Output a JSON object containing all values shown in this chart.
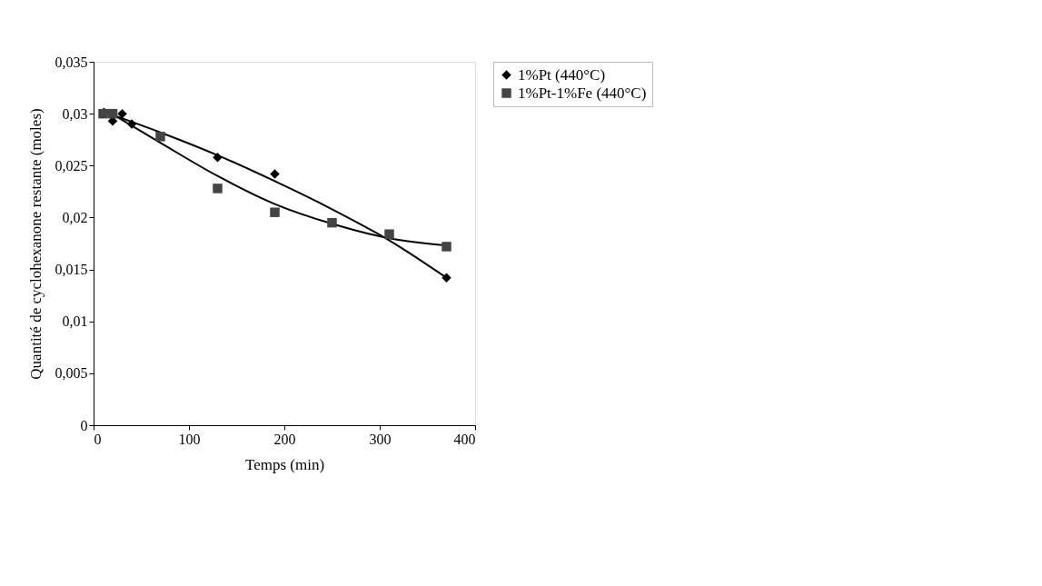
{
  "chart_data": {
    "type": "scatter",
    "xlabel": "Temps (min)",
    "ylabel": "Quantité de cyclohexanone restante (moles)",
    "xlim": [
      0,
      400
    ],
    "xticks": [
      0,
      100,
      200,
      300,
      400
    ],
    "ylim": [
      0,
      0.035
    ],
    "yticks": [
      {
        "value": 0,
        "label": "0"
      },
      {
        "value": 0.005,
        "label": "0,005"
      },
      {
        "value": 0.01,
        "label": "0,01"
      },
      {
        "value": 0.015,
        "label": "0,015"
      },
      {
        "value": 0.02,
        "label": "0,02"
      },
      {
        "value": 0.025,
        "label": "0,025"
      },
      {
        "value": 0.03,
        "label": "0,03"
      },
      {
        "value": 0.035,
        "label": "0,035"
      }
    ],
    "grid": false,
    "legend": "right",
    "series": [
      {
        "name": "1%Pt (440°C)",
        "color": "#000000",
        "marker": "diamond",
        "x": [
          20,
          30,
          40,
          70,
          130,
          190,
          370
        ],
        "values": [
          0.0293,
          0.03,
          0.029,
          null,
          0.0258,
          0.0242,
          0.0142
        ]
      },
      {
        "name": "1%Pt-1%Fe (440°C)",
        "color": "#444444",
        "marker": "square",
        "x": [
          10,
          20,
          70,
          130,
          190,
          250,
          310,
          370
        ],
        "values": [
          0.03,
          0.03,
          0.0278,
          0.0228,
          0.0205,
          0.0195,
          0.0184,
          0.0172
        ]
      },
      {
        "type": "line",
        "color": "#000000",
        "line_style": "solid",
        "x": [
          10,
          70,
          130,
          190,
          250,
          310,
          370
        ],
        "values": [
          0.0302,
          0.0282,
          0.026,
          0.0235,
          0.0208,
          0.0178,
          0.0142
        ]
      },
      {
        "type": "line",
        "color": "#000000",
        "line_style": "solid",
        "x": [
          10,
          70,
          130,
          190,
          250,
          310,
          370
        ],
        "values": [
          0.0305,
          0.0272,
          0.024,
          0.0213,
          0.0194,
          0.018,
          0.0173
        ]
      }
    ]
  }
}
